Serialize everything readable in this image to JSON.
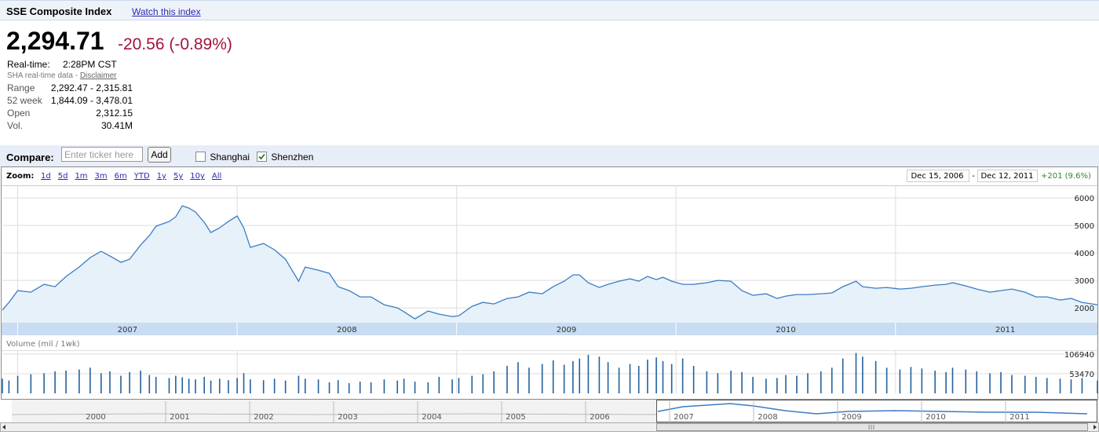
{
  "header": {
    "title": "SSE Composite Index",
    "watch_link": "Watch this index"
  },
  "quote": {
    "price": "2,294.71",
    "change": "-20.56 (-0.89%)",
    "realtime_label": "Real-time:",
    "realtime_value": "2:28PM CST",
    "source": "SHA real-time data -",
    "disclaimer": "Disclaimer"
  },
  "stats": {
    "rows": [
      [
        "Range",
        "2,292.47 - 2,315.81"
      ],
      [
        "52 week",
        "1,844.09 - 3,478.01"
      ],
      [
        "Open",
        "2,312.15"
      ],
      [
        "Vol.",
        "30.41M"
      ]
    ]
  },
  "compare": {
    "label": "Compare:",
    "placeholder": "Enter ticker here",
    "button": "Add",
    "options": [
      {
        "label": "Shanghai",
        "checked": false
      },
      {
        "label": "Shenzhen",
        "checked": true
      }
    ]
  },
  "zoom": {
    "label": "Zoom:",
    "options": [
      "1d",
      "5d",
      "1m",
      "3m",
      "6m",
      "YTD",
      "1y",
      "5y",
      "10y",
      "All"
    ]
  },
  "range": {
    "start": "Dec 15, 2006",
    "separator": "-",
    "end": "Dec 12, 2011",
    "change": "+201 (9.6%)"
  },
  "chart_data": [
    {
      "type": "line",
      "color": "#3b7cc3",
      "x": [
        2006.93,
        2006.96,
        2007.0,
        2007.06,
        2007.12,
        2007.17,
        2007.22,
        2007.28,
        2007.33,
        2007.38,
        2007.42,
        2007.47,
        2007.51,
        2007.56,
        2007.6,
        2007.63,
        2007.69,
        2007.72,
        2007.75,
        2007.78,
        2007.81,
        2007.85,
        2007.88,
        2007.92,
        2007.96,
        2008.0,
        2008.03,
        2008.06,
        2008.12,
        2008.17,
        2008.22,
        2008.28,
        2008.31,
        2008.37,
        2008.42,
        2008.46,
        2008.51,
        2008.56,
        2008.61,
        2008.67,
        2008.73,
        2008.76,
        2008.81,
        2008.87,
        2008.92,
        2008.98,
        2009.01,
        2009.07,
        2009.12,
        2009.17,
        2009.23,
        2009.28,
        2009.33,
        2009.39,
        2009.44,
        2009.49,
        2009.53,
        2009.56,
        2009.6,
        2009.65,
        2009.69,
        2009.74,
        2009.79,
        2009.83,
        2009.87,
        2009.91,
        2009.94,
        2009.98,
        2010.03,
        2010.08,
        2010.14,
        2010.19,
        2010.25,
        2010.3,
        2010.35,
        2010.41,
        2010.46,
        2010.5,
        2010.55,
        2010.6,
        2010.66,
        2010.71,
        2010.76,
        2010.82,
        2010.85,
        2010.91,
        2010.96,
        2011.02,
        2011.07,
        2011.12,
        2011.18,
        2011.23,
        2011.26,
        2011.32,
        2011.37,
        2011.43,
        2011.48,
        2011.53,
        2011.59,
        2011.64,
        2011.69,
        2011.75,
        2011.8,
        2011.85,
        2011.92
      ],
      "values": [
        1914,
        2200,
        2629,
        2571,
        2857,
        2771,
        3143,
        3486,
        3829,
        4057,
        3886,
        3657,
        3771,
        4286,
        4629,
        4971,
        5143,
        5314,
        5714,
        5629,
        5486,
        5114,
        4743,
        4914,
        5143,
        5343,
        4914,
        4200,
        4343,
        4114,
        3771,
        2971,
        3486,
        3371,
        3257,
        2771,
        2629,
        2400,
        2400,
        2114,
        2000,
        1857,
        1600,
        1886,
        1771,
        1686,
        1714,
        2057,
        2200,
        2143,
        2343,
        2400,
        2571,
        2514,
        2771,
        2971,
        3200,
        3200,
        2914,
        2743,
        2857,
        2971,
        3057,
        2971,
        3143,
        3029,
        3114,
        2971,
        2857,
        2857,
        2914,
        3000,
        2971,
        2629,
        2457,
        2514,
        2343,
        2429,
        2486,
        2486,
        2514,
        2543,
        2771,
        2971,
        2771,
        2714,
        2743,
        2686,
        2714,
        2771,
        2829,
        2857,
        2914,
        2800,
        2686,
        2571,
        2629,
        2686,
        2571,
        2400,
        2400,
        2286,
        2343,
        2200,
        2114
      ],
      "xlim": [
        2006.93,
        2011.92
      ],
      "xticks": [
        2007,
        2008,
        2009,
        2010,
        2011
      ],
      "ylim": [
        1460,
        6430
      ],
      "yticks": [
        2000,
        3000,
        4000,
        5000,
        6000
      ],
      "grid": true
    },
    {
      "type": "bar",
      "title": "Volume (mil / 1wk)",
      "color": "#24609d",
      "x": [
        2006.93,
        2006.96,
        2007.0,
        2007.06,
        2007.12,
        2007.17,
        2007.22,
        2007.28,
        2007.33,
        2007.38,
        2007.42,
        2007.47,
        2007.51,
        2007.56,
        2007.6,
        2007.63,
        2007.69,
        2007.72,
        2007.75,
        2007.78,
        2007.81,
        2007.85,
        2007.88,
        2007.92,
        2007.96,
        2008.0,
        2008.03,
        2008.06,
        2008.12,
        2008.17,
        2008.22,
        2008.28,
        2008.31,
        2008.37,
        2008.42,
        2008.46,
        2008.51,
        2008.56,
        2008.61,
        2008.67,
        2008.73,
        2008.76,
        2008.81,
        2008.87,
        2008.92,
        2008.98,
        2009.01,
        2009.07,
        2009.12,
        2009.17,
        2009.23,
        2009.28,
        2009.33,
        2009.39,
        2009.44,
        2009.49,
        2009.53,
        2009.56,
        2009.6,
        2009.65,
        2009.69,
        2009.74,
        2009.79,
        2009.83,
        2009.87,
        2009.91,
        2009.94,
        2009.98,
        2010.03,
        2010.08,
        2010.14,
        2010.19,
        2010.25,
        2010.3,
        2010.35,
        2010.41,
        2010.46,
        2010.5,
        2010.55,
        2010.6,
        2010.66,
        2010.71,
        2010.76,
        2010.82,
        2010.85,
        2010.91,
        2010.96,
        2011.02,
        2011.07,
        2011.12,
        2011.18,
        2011.23,
        2011.26,
        2011.32,
        2011.37,
        2011.43,
        2011.48,
        2011.53,
        2011.59,
        2011.64,
        2011.69,
        2011.75,
        2011.8,
        2011.85,
        2011.92
      ],
      "values": [
        40000,
        35000,
        48000,
        52000,
        55000,
        60000,
        62000,
        65000,
        70000,
        55000,
        60000,
        48000,
        58000,
        62000,
        50000,
        45000,
        42000,
        48000,
        44000,
        40000,
        38000,
        45000,
        35000,
        40000,
        36000,
        42000,
        55000,
        38000,
        36000,
        40000,
        35000,
        48000,
        40000,
        38000,
        30000,
        36000,
        28000,
        32000,
        30000,
        38000,
        35000,
        40000,
        32000,
        30000,
        45000,
        38000,
        42000,
        48000,
        52000,
        60000,
        75000,
        85000,
        70000,
        80000,
        90000,
        78000,
        88000,
        95000,
        105000,
        100000,
        85000,
        70000,
        80000,
        75000,
        92000,
        98000,
        88000,
        80000,
        95000,
        75000,
        60000,
        55000,
        62000,
        58000,
        45000,
        40000,
        42000,
        50000,
        48000,
        55000,
        60000,
        70000,
        95000,
        110000,
        100000,
        88000,
        70000,
        65000,
        72000,
        68000,
        62000,
        58000,
        70000,
        65000,
        60000,
        55000,
        58000,
        50000,
        48000,
        45000,
        42000,
        40000,
        38000,
        42000,
        35000
      ],
      "xlim": [
        2006.93,
        2011.92
      ],
      "ylim": [
        0,
        115500
      ],
      "yticks": [
        53470,
        106940
      ],
      "grid": true
    }
  ],
  "navigator": {
    "years": [
      "2000",
      "2001",
      "2002",
      "2003",
      "2004",
      "2005",
      "2006",
      "2007",
      "2008",
      "2009",
      "2010",
      "2011"
    ]
  }
}
